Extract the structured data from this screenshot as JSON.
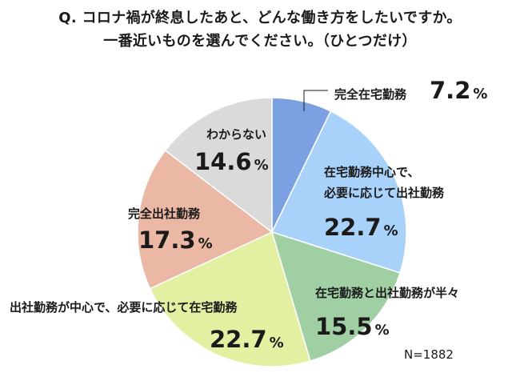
{
  "title": {
    "line1": "Q. コロナ禍が終息したあと、どんな働き方をしたいですか。",
    "line2": "一番近いものを選んでください。（ひとつだけ）"
  },
  "sample_note": "N=1882",
  "chart_data": {
    "type": "pie",
    "unit": "%",
    "start": "12 o'clock",
    "direction": "clockwise",
    "slices": [
      {
        "label": "完全在宅勤務",
        "value": 7.2,
        "color": "#7ba1e3"
      },
      {
        "label": "在宅勤務中心で、必要に応じて出社勤務",
        "value": 22.7,
        "color": "#a9d2fb"
      },
      {
        "label": "在宅勤務と出社勤務が半々",
        "value": 15.5,
        "color": "#9fcfa3"
      },
      {
        "label": "出社勤務が中心で、必要に応じて在宅勤務",
        "value": 22.7,
        "color": "#e3efa1"
      },
      {
        "label": "完全出社勤務",
        "value": 17.3,
        "color": "#eab8a4"
      },
      {
        "label": "わからない",
        "value": 14.6,
        "color": "#dadada"
      }
    ]
  }
}
